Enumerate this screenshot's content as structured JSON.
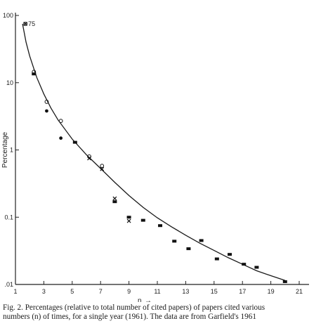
{
  "chart_data": {
    "type": "scatter",
    "ylabel": "Percentage",
    "xlabel": "n",
    "x_arrow": "→",
    "y_scale": "log",
    "xlim": [
      1,
      22
    ],
    "ylim": [
      0.01,
      100
    ],
    "x_ticks": [
      1,
      3,
      5,
      7,
      9,
      11,
      13,
      15,
      17,
      19,
      21
    ],
    "y_ticks": [
      {
        "value": 100,
        "label": "100"
      },
      {
        "value": 10,
        "label": "10"
      },
      {
        "value": 1,
        "label": "1"
      },
      {
        "value": 0.1,
        "label": "0.1"
      },
      {
        "value": 0.01,
        "label": ".01"
      }
    ],
    "grid": false,
    "annotations": [
      {
        "x": 1.7,
        "y": 75,
        "text": "75"
      }
    ],
    "series": [
      {
        "marker": "square",
        "points": [
          [
            2.3,
            13.5
          ],
          [
            5.2,
            1.3
          ],
          [
            8.0,
            0.17
          ],
          [
            9.0,
            0.1
          ],
          [
            10.0,
            0.09
          ],
          [
            11.2,
            0.075
          ],
          [
            12.2,
            0.044
          ],
          [
            13.2,
            0.034
          ],
          [
            14.1,
            0.045
          ],
          [
            15.2,
            0.024
          ],
          [
            16.1,
            0.028
          ],
          [
            17.1,
            0.02
          ],
          [
            18.0,
            0.018
          ],
          [
            20.0,
            0.011
          ]
        ]
      },
      {
        "marker": "filled-circle",
        "points": [
          [
            3.2,
            3.8
          ],
          [
            4.2,
            1.5
          ]
        ]
      },
      {
        "marker": "open-circle",
        "points": [
          [
            1.7,
            75
          ],
          [
            2.3,
            14.5
          ],
          [
            3.2,
            5.2
          ],
          [
            4.2,
            2.7
          ],
          [
            6.2,
            0.8
          ],
          [
            7.1,
            0.58
          ]
        ]
      },
      {
        "marker": "cross",
        "points": [
          [
            1.7,
            75
          ],
          [
            6.2,
            0.75
          ],
          [
            7.1,
            0.52
          ],
          [
            8.0,
            0.19
          ],
          [
            9.0,
            0.088
          ]
        ]
      }
    ],
    "fit_curve": [
      [
        1.5,
        75
      ],
      [
        1.75,
        40
      ],
      [
        2,
        25
      ],
      [
        2.5,
        12
      ],
      [
        3,
        6.8
      ],
      [
        3.5,
        4.2
      ],
      [
        4,
        2.8
      ],
      [
        5,
        1.45
      ],
      [
        6,
        0.85
      ],
      [
        7,
        0.53
      ],
      [
        8,
        0.33
      ],
      [
        9,
        0.21
      ],
      [
        10,
        0.14
      ],
      [
        11,
        0.098
      ],
      [
        12,
        0.072
      ],
      [
        13,
        0.054
      ],
      [
        14,
        0.041
      ],
      [
        15,
        0.032
      ],
      [
        16,
        0.025
      ],
      [
        17,
        0.02
      ],
      [
        18,
        0.016
      ],
      [
        19,
        0.0135
      ],
      [
        20,
        0.0115
      ]
    ]
  },
  "caption": {
    "line1": "Fig. 2. Percentages (relative to total number of cited papers) of papers cited various",
    "line2": "numbers (n) of times, for a single year (1961). The data are from Garfield's 1961"
  }
}
